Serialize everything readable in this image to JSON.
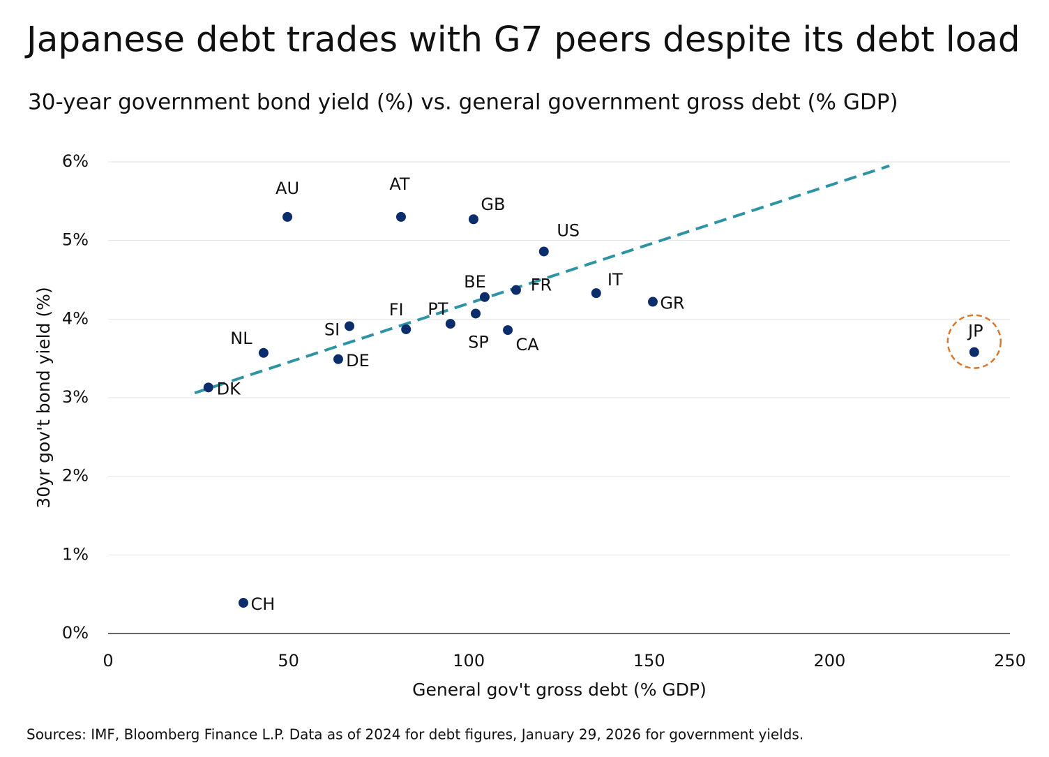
{
  "chart_data": {
    "type": "scatter",
    "title": "Japanese debt trades with G7 peers despite its debt load",
    "subtitle": "30-year government bond yield (%) vs. general government gross debt (% GDP)",
    "x_label": "General gov't gross debt (% GDP)",
    "y_label": "30yr gov't bond yield (%)",
    "source": "Sources: IMF, Bloomberg Finance L.P. Data as of 2024 for debt figures, January 29, 2026 for government yields.",
    "labels": [
      "AU",
      "AT",
      "GB",
      "US",
      "BE",
      "FR",
      "IT",
      "GR",
      "FI",
      "PT",
      "SP",
      "CA",
      "SI",
      "NL",
      "DE",
      "DK",
      "CH",
      "JP"
    ],
    "x": [
      49.7,
      81.2,
      101.3,
      120.8,
      104.4,
      113.1,
      135.3,
      151.0,
      82.6,
      94.9,
      101.9,
      110.8,
      66.9,
      43.1,
      63.8,
      27.8,
      37.5,
      240.1
    ],
    "values": [
      5.3,
      5.3,
      5.27,
      4.86,
      4.28,
      4.37,
      4.33,
      4.22,
      3.87,
      3.94,
      4.07,
      3.86,
      3.91,
      3.57,
      3.49,
      3.13,
      0.39,
      3.58
    ],
    "color": "#0b2d6b",
    "trendline": {
      "x": [
        24.0,
        216.6
      ],
      "values": [
        3.06,
        5.95
      ],
      "color": "#2e93a3"
    },
    "highlight": "JP",
    "highlight_color": "#d9782d",
    "xlim": [
      0,
      250
    ],
    "xticks": [
      0,
      50,
      100,
      150,
      200,
      250
    ],
    "ylim": [
      0,
      6
    ],
    "yticks": [
      {
        "value": 0,
        "label": "0%"
      },
      {
        "value": 1,
        "label": "1%"
      },
      {
        "value": 2,
        "label": "2%"
      },
      {
        "value": 3,
        "label": "3%"
      },
      {
        "value": 4,
        "label": "4%"
      },
      {
        "value": 5,
        "label": "5%"
      },
      {
        "value": 6,
        "label": "6%"
      }
    ],
    "grid": true
  }
}
